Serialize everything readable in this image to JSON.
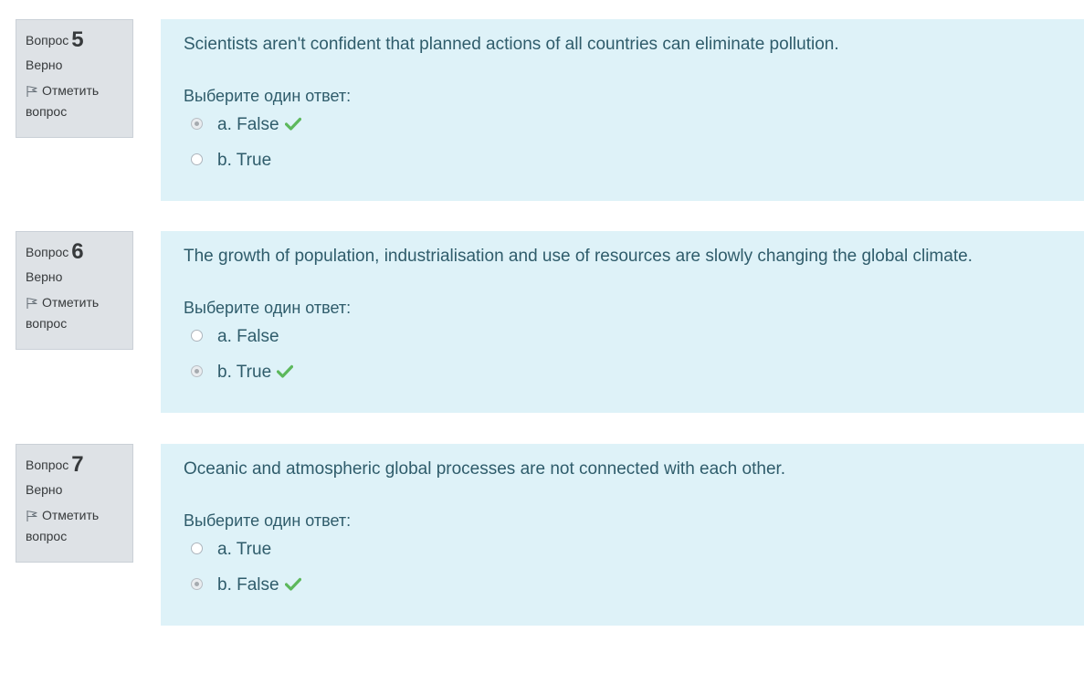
{
  "colors": {
    "info_bg": "#dee2e6",
    "content_bg": "#def2f8",
    "text": "#2f5c6b",
    "correct": "#5cb85c"
  },
  "questions": [
    {
      "label": "Вопрос",
      "number": "5",
      "state": "Верно",
      "flag_label": "Отметить вопрос",
      "text": "Scientists aren't confident that planned actions of all countries can eliminate pollution.",
      "prompt": "Выберите один ответ:",
      "options": [
        {
          "label": "a. False",
          "checked": true,
          "correct": true
        },
        {
          "label": "b. True",
          "checked": false,
          "correct": false
        }
      ]
    },
    {
      "label": "Вопрос",
      "number": "6",
      "state": "Верно",
      "flag_label": "Отметить вопрос",
      "text": "The growth of population, industrialisation and use of resources are slowly changing the global climate.",
      "prompt": "Выберите один ответ:",
      "options": [
        {
          "label": "a. False",
          "checked": false,
          "correct": false
        },
        {
          "label": "b. True",
          "checked": true,
          "correct": true
        }
      ]
    },
    {
      "label": "Вопрос",
      "number": "7",
      "state": "Верно",
      "flag_label": "Отметить вопрос",
      "text": "Oceanic and atmospheric global processes are not connected with each other.",
      "prompt": "Выберите один ответ:",
      "options": [
        {
          "label": "a. True",
          "checked": false,
          "correct": false
        },
        {
          "label": "b. False",
          "checked": true,
          "correct": true
        }
      ]
    }
  ]
}
